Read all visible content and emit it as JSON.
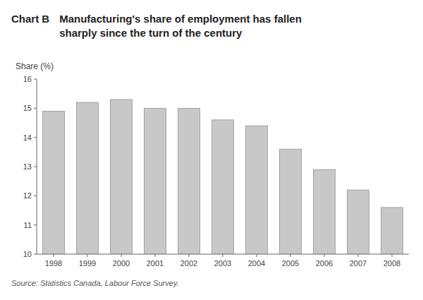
{
  "chart_data": {
    "type": "bar",
    "title": "Manufacturing's share of employment has fallen\nsharply since the turn of the century",
    "y_label": "Share (%)",
    "annotations": [
      "Chart B",
      "Source: Statistics Canada, Labour Force Survey."
    ],
    "categories": [
      "1998",
      "1999",
      "2000",
      "2001",
      "2002",
      "2003",
      "2004",
      "2005",
      "2006",
      "2007",
      "2008"
    ],
    "values": [
      14.9,
      15.2,
      15.3,
      15.0,
      15.0,
      14.6,
      14.4,
      13.6,
      12.9,
      12.2,
      11.6
    ],
    "color": "#c8c8c8",
    "ylim": [
      10,
      16
    ],
    "yticks": [
      10,
      11,
      12,
      13,
      14,
      15,
      16
    ],
    "grid": false
  }
}
